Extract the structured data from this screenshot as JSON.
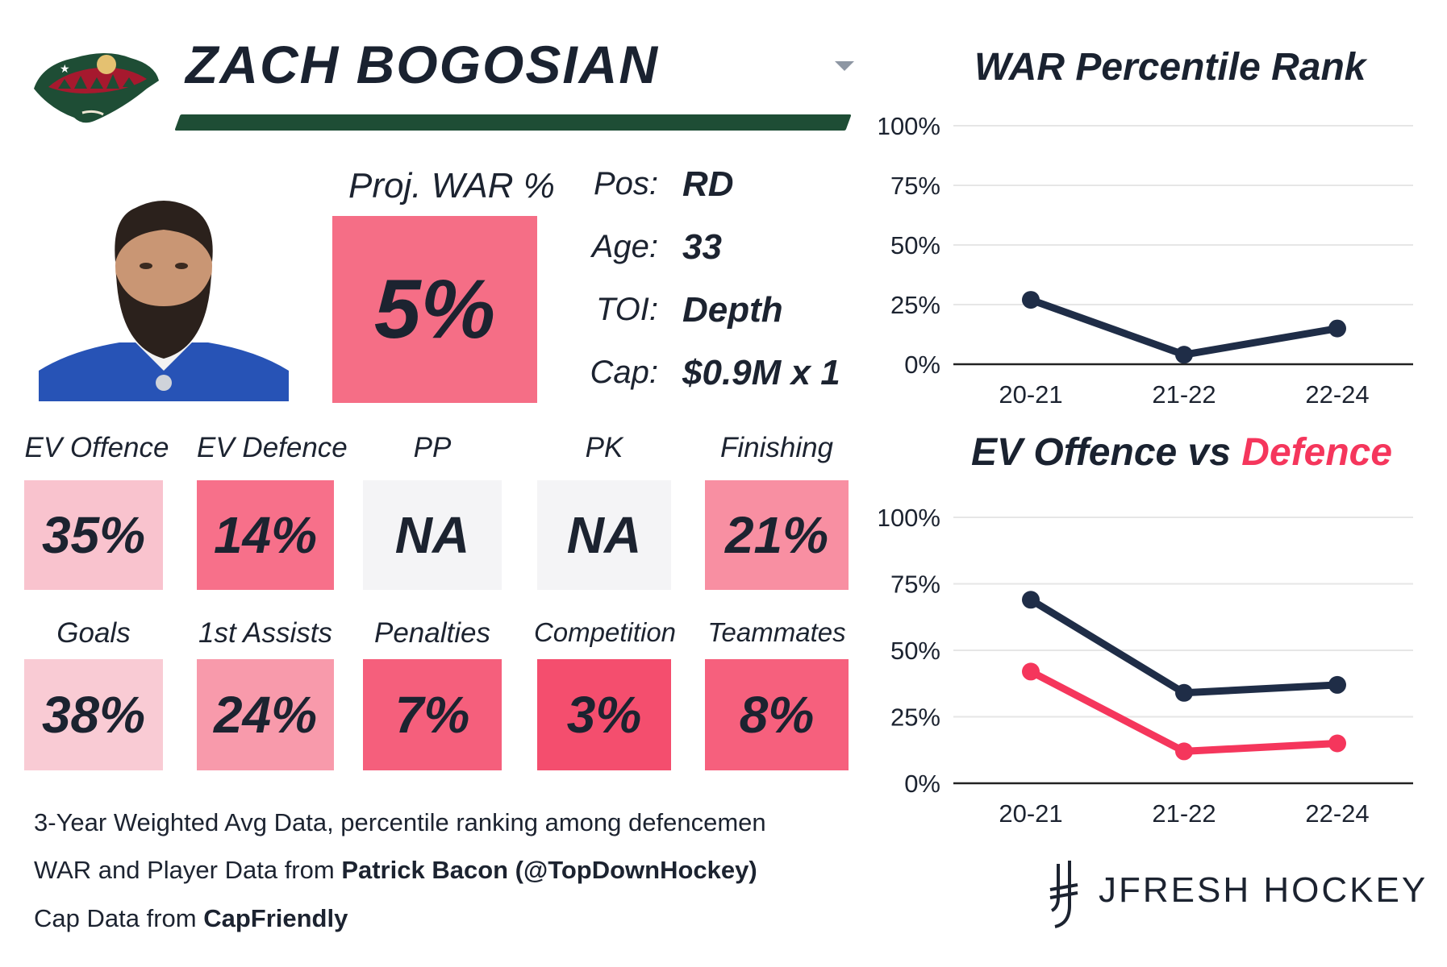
{
  "player": {
    "name": "ZACH BOGOSIAN",
    "proj_war_label": "Proj. WAR %",
    "proj_war_value": "5%",
    "info": [
      {
        "label": "Pos:",
        "value": "RD"
      },
      {
        "label": "Age:",
        "value": "33"
      },
      {
        "label": "TOI:",
        "value": "Depth"
      },
      {
        "label": "Cap:",
        "value": "$0.9M x 1"
      }
    ]
  },
  "stats_row1": [
    {
      "label": "EV Offence",
      "value": "35%",
      "color": "#f9c3ce"
    },
    {
      "label": "EV Defence",
      "value": "14%",
      "color": "#f7708a"
    },
    {
      "label": "PP",
      "value": "NA",
      "color": "#f4f4f6"
    },
    {
      "label": "PK",
      "value": "NA",
      "color": "#f4f4f6"
    },
    {
      "label": "Finishing",
      "value": "21%",
      "color": "#f88fa2"
    }
  ],
  "stats_row2": [
    {
      "label": "Goals",
      "value": "38%",
      "color": "#f9cbd4"
    },
    {
      "label": "1st Assists",
      "value": "24%",
      "color": "#f89aab"
    },
    {
      "label": "Penalties",
      "value": "7%",
      "color": "#f55f7c"
    },
    {
      "label": "Competition",
      "value": "3%",
      "color": "#f44e6e"
    },
    {
      "label": "Teammates",
      "value": "8%",
      "color": "#f6607d"
    }
  ],
  "footer": {
    "line1": "3-Year Weighted Avg Data, percentile ranking among defencemen",
    "line2_prefix": "WAR and Player Data from ",
    "line2_bold": "Patrick Bacon (@TopDownHockey)",
    "line3_prefix": "Cap Data from ",
    "line3_bold": "CapFriendly"
  },
  "brand": "JFRESH HOCKEY",
  "colors": {
    "navy": "#1f2d47",
    "red": "#f5365c",
    "team_green": "#1e4d35"
  },
  "chart_data": [
    {
      "type": "line",
      "title": "WAR Percentile Rank",
      "categories": [
        "20-21",
        "21-22",
        "22-24"
      ],
      "series": [
        {
          "name": "WAR",
          "values": [
            27,
            4,
            15
          ],
          "color": "#1f2d47"
        }
      ],
      "ylim": [
        0,
        100
      ],
      "yticks": [
        "0%",
        "25%",
        "50%",
        "75%",
        "100%"
      ]
    },
    {
      "type": "line",
      "title_part1": "EV Offence vs ",
      "title_part2": "Defence",
      "categories": [
        "20-21",
        "21-22",
        "22-24"
      ],
      "series": [
        {
          "name": "EV Offence",
          "values": [
            69,
            34,
            37
          ],
          "color": "#1f2d47"
        },
        {
          "name": "EV Defence",
          "values": [
            42,
            12,
            15
          ],
          "color": "#f5365c"
        }
      ],
      "ylim": [
        0,
        100
      ],
      "yticks": [
        "0%",
        "25%",
        "50%",
        "75%",
        "100%"
      ]
    }
  ]
}
